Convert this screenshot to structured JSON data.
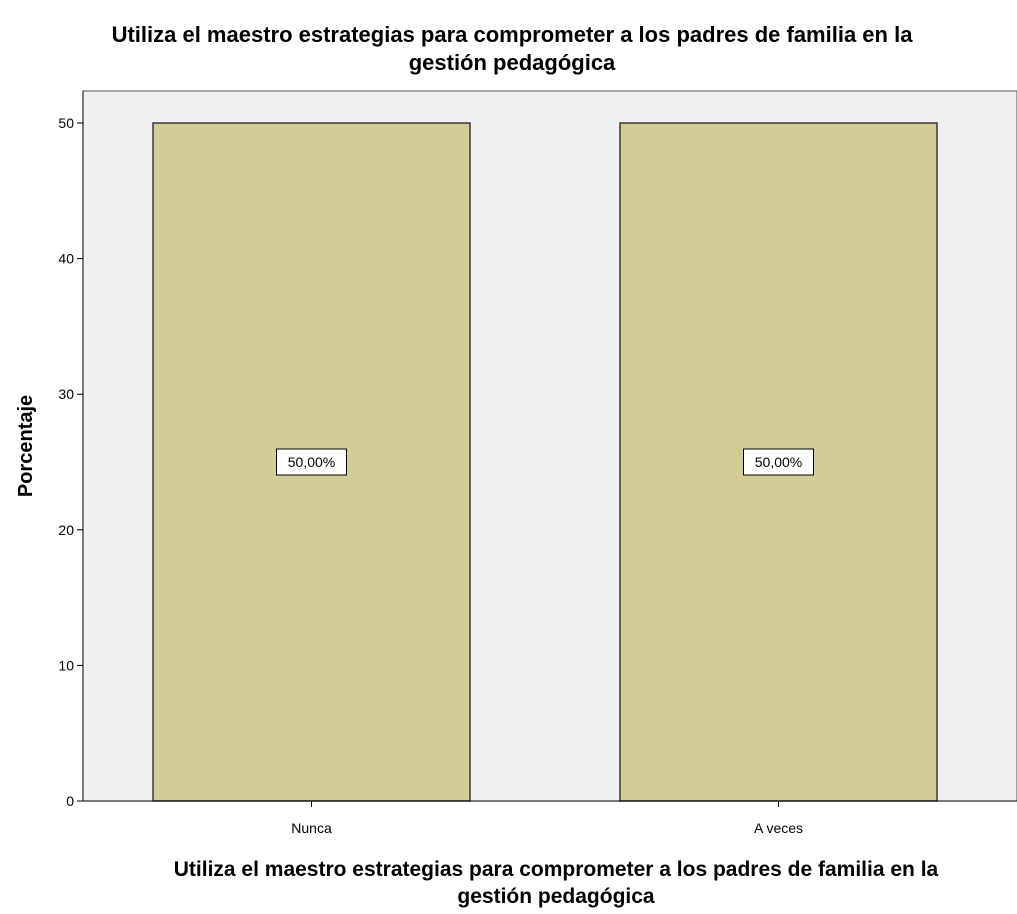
{
  "chart_data": {
    "type": "bar",
    "title_lines": [
      "Utiliza el maestro estrategias para comprometer a los padres de familia en la",
      "gestión pedagógica"
    ],
    "xlabel_lines": [
      "Utiliza el maestro estrategias para comprometer a los padres de familia en la",
      "gestión pedagógica"
    ],
    "ylabel": "Porcentaje",
    "categories": [
      "Nunca",
      "A veces"
    ],
    "values": [
      50,
      50
    ],
    "data_labels": [
      "50,00%",
      "50,00%"
    ],
    "ylim": [
      0,
      52
    ],
    "yticks": [
      0,
      10,
      20,
      30,
      40,
      50
    ],
    "grid": false,
    "colors": {
      "bar_fill": "#d2cc96",
      "bar_stroke": "#3a3a30",
      "plot_bg": "#f0f0f0"
    }
  }
}
